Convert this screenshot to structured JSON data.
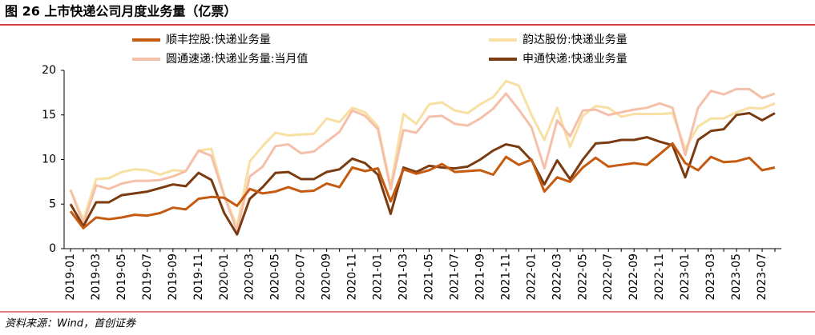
{
  "chart_data": {
    "type": "line",
    "title": "图 26 上市快递公司月度业务量（亿票）",
    "source": "资料来源：Wind，首创证券",
    "categories": [
      "2019-01",
      null,
      "2019-03",
      null,
      "2019-05",
      null,
      "2019-07",
      null,
      "2019-09",
      null,
      "2019-11",
      null,
      "2020-01",
      null,
      "2020-03",
      null,
      "2020-05",
      null,
      "2020-07",
      null,
      "2020-09",
      null,
      "2020-11",
      null,
      "2021-01",
      null,
      "2021-03",
      null,
      "2021-05",
      null,
      "2021-07",
      null,
      "2021-09",
      null,
      "2021-11",
      null,
      "2022-01",
      null,
      "2022-03",
      null,
      "2022-05",
      null,
      "2022-07",
      null,
      "2022-09",
      null,
      "2022-11",
      null,
      "2023-01",
      null,
      "2023-03",
      null,
      "2023-05",
      null,
      "2023-07",
      null
    ],
    "ylim": [
      0,
      20
    ],
    "yticks": [
      0,
      5,
      10,
      15,
      20
    ],
    "series": [
      {
        "name": "顺丰控股:快递业务量",
        "color": "#c55a11",
        "values": [
          4.2,
          2.3,
          3.5,
          3.3,
          3.5,
          3.8,
          3.7,
          4.0,
          4.6,
          4.4,
          5.6,
          5.8,
          5.7,
          4.8,
          6.7,
          6.2,
          6.4,
          6.9,
          6.4,
          6.5,
          7.3,
          6.9,
          9.1,
          8.7,
          9.0,
          5.3,
          8.9,
          8.4,
          8.8,
          9.5,
          8.6,
          8.7,
          8.8,
          8.3,
          10.3,
          9.4,
          10.0,
          6.4,
          8.0,
          7.5,
          9.1,
          10.2,
          9.2,
          9.4,
          9.6,
          9.4,
          10.6,
          11.8,
          9.6,
          8.8,
          10.3,
          9.7,
          9.8,
          10.2,
          8.8,
          9.1
        ]
      },
      {
        "name": "韵达股份:快递业务量",
        "color": "#f8dfa2",
        "values": [
          6.6,
          3.2,
          7.8,
          7.9,
          8.6,
          8.9,
          8.8,
          8.3,
          8.8,
          8.7,
          11.0,
          11.2,
          6.0,
          2.5,
          9.8,
          11.5,
          13.0,
          12.7,
          12.8,
          12.9,
          14.6,
          14.2,
          15.8,
          15.3,
          13.7,
          7.0,
          15.1,
          14.0,
          16.2,
          16.4,
          15.5,
          15.2,
          16.2,
          17.0,
          18.8,
          18.3,
          15.0,
          12.2,
          15.8,
          11.4,
          14.9,
          16.0,
          15.8,
          14.8,
          15.1,
          15.1,
          15.1,
          15.2,
          11.2,
          13.7,
          14.6,
          14.6,
          15.3,
          15.8,
          15.7,
          16.3
        ]
      },
      {
        "name": "圆通速递:快递业务量:当月值",
        "color": "#f5c0aa",
        "values": [
          6.6,
          2.8,
          7.1,
          6.7,
          7.3,
          7.6,
          7.6,
          7.7,
          8.1,
          8.7,
          11.0,
          10.4,
          5.9,
          2.0,
          8.1,
          9.2,
          11.5,
          11.7,
          10.7,
          10.9,
          12.0,
          13.1,
          15.5,
          14.9,
          13.4,
          6.7,
          13.3,
          13.0,
          14.8,
          14.9,
          14.0,
          13.8,
          14.6,
          15.7,
          17.4,
          15.6,
          13.6,
          9.0,
          14.4,
          12.6,
          15.5,
          15.6,
          15.0,
          15.3,
          15.6,
          15.8,
          16.3,
          15.8,
          10.5,
          15.8,
          17.7,
          17.3,
          17.9,
          17.9,
          16.9,
          17.4
        ]
      },
      {
        "name": "申通快递:快递业务量",
        "color": "#7a3b10",
        "values": [
          5.0,
          2.5,
          5.2,
          5.2,
          6.0,
          6.2,
          6.4,
          6.8,
          7.2,
          7.0,
          8.5,
          7.7,
          4.0,
          1.6,
          5.6,
          6.9,
          8.5,
          8.6,
          7.8,
          7.8,
          8.6,
          8.9,
          10.1,
          9.6,
          8.3,
          3.9,
          9.1,
          8.6,
          9.3,
          9.1,
          9.0,
          9.2,
          10.0,
          11.0,
          11.7,
          11.4,
          9.9,
          7.2,
          9.9,
          7.8,
          10.0,
          11.8,
          11.9,
          12.2,
          12.2,
          12.5,
          12.0,
          11.6,
          8.0,
          12.2,
          13.2,
          13.4,
          15.0,
          15.2,
          14.4,
          15.2
        ]
      }
    ]
  }
}
